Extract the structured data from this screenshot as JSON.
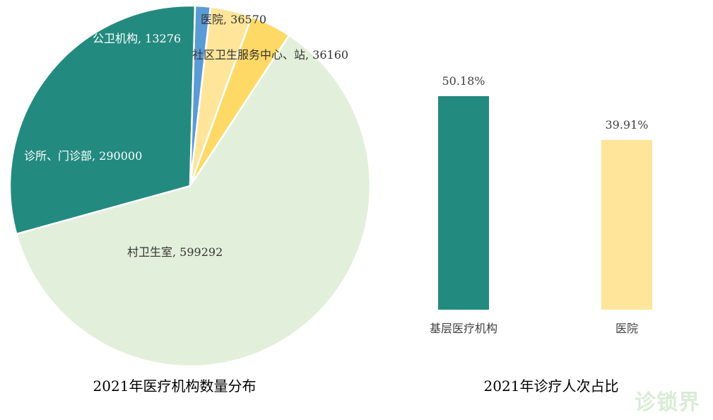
{
  "colors": {
    "teal": "#238a80",
    "pale_green": "#e2efda",
    "yellow": "#fed966",
    "light_yellow": "#fee599",
    "blue": "#5b9bd5"
  },
  "watermark": "诊锁界",
  "chart_data": [
    {
      "type": "pie",
      "title": "2021年医疗机构数量分布",
      "slices": [
        {
          "label": "医院, 36570",
          "name": "医院",
          "value": 36570,
          "color": "#fee599"
        },
        {
          "label": "社区卫生服务中心、站, 36160",
          "name": "社区卫生服务中心、站",
          "value": 36160,
          "color": "#fed966"
        },
        {
          "label": "村卫生室, 599292",
          "name": "村卫生室",
          "value": 599292,
          "color": "#e2efda"
        },
        {
          "label": "诊所、门诊部, 290000",
          "name": "诊所、门诊部",
          "value": 290000,
          "color": "#238a80"
        },
        {
          "label": "公卫机构, 13276",
          "name": "公卫机构",
          "value": 13276,
          "color": "#5b9bd5"
        }
      ]
    },
    {
      "type": "bar",
      "title": "2021年诊疗人次占比",
      "categories": [
        "基层医疗机构",
        "医院"
      ],
      "values": [
        50.18,
        39.91
      ],
      "data_labels": [
        "50.18%",
        "39.91%"
      ],
      "colors": [
        "#238a80",
        "#fee599"
      ],
      "unit": "%"
    }
  ]
}
